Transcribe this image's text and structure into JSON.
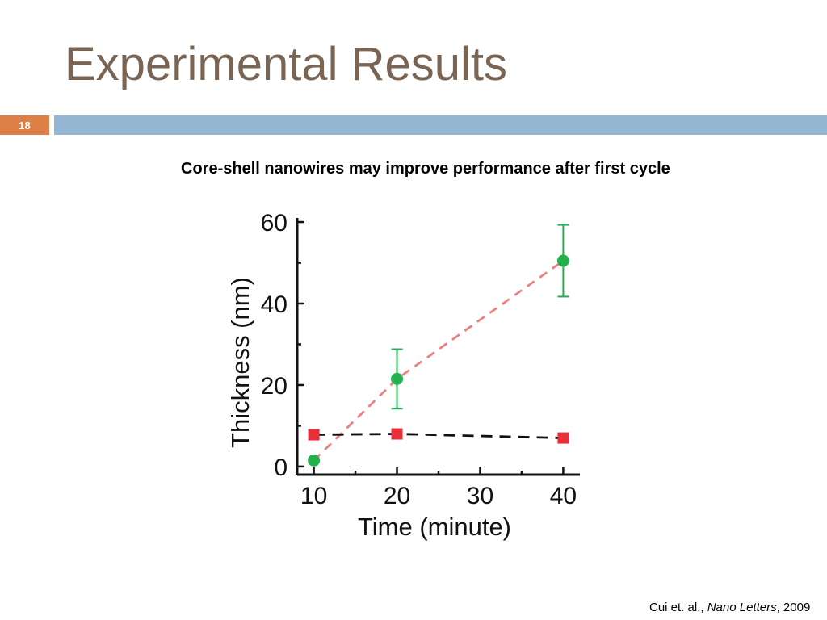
{
  "slide": {
    "title": "Experimental Results",
    "number": "18",
    "subtitle": "Core-shell nanowires may improve performance after first cycle",
    "citation": {
      "authors": "Cui et. al., ",
      "journal": "Nano Letters",
      "suffix": ", 2009"
    }
  },
  "colors": {
    "title": "#7a6554",
    "accent_orange": "#dd8047",
    "bar_blue": "#94b6d2",
    "green_series": "#22b14c",
    "red_series": "#e8303a",
    "red_dash": "#f08080",
    "black_dash": "#111111"
  },
  "chart_data": {
    "type": "scatter",
    "xlabel": "Time (minute)",
    "ylabel": "Thickness (nm)",
    "xlim": [
      8,
      42
    ],
    "ylim": [
      -2,
      61
    ],
    "xticks": [
      10,
      20,
      30,
      40
    ],
    "yticks": [
      0,
      20,
      40,
      60
    ],
    "grid": false,
    "series": [
      {
        "marker": "circle",
        "color": "#22b14c",
        "line": "dashed",
        "line_color": "#f08080",
        "x": [
          10,
          20,
          40
        ],
        "y": [
          1.5,
          21.5,
          50.5
        ],
        "yerr": [
          0,
          7.3,
          8.8
        ]
      },
      {
        "marker": "square",
        "color": "#e8303a",
        "line": "dashed",
        "line_color": "#111111",
        "x": [
          10,
          20,
          40
        ],
        "y": [
          7.8,
          8,
          7
        ]
      }
    ]
  }
}
